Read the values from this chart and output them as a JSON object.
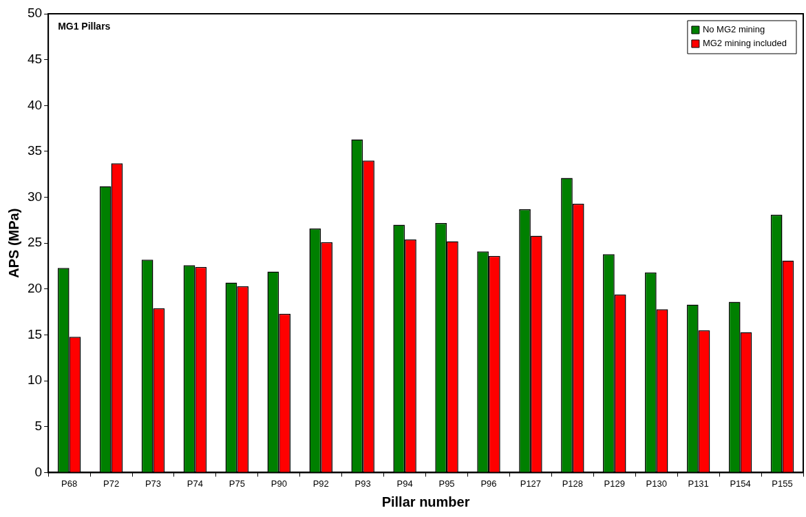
{
  "chart_data": {
    "type": "bar",
    "xlabel": "Pillar number",
    "ylabel": "APS (MPa)",
    "annotations": [
      "MG1 Pillars"
    ],
    "categories": [
      "P68",
      "P72",
      "P73",
      "P74",
      "P75",
      "P90",
      "P92",
      "P93",
      "P94",
      "P95",
      "P96",
      "P127",
      "P128",
      "P129",
      "P130",
      "P131",
      "P154",
      "P155"
    ],
    "series": [
      {
        "name": "No MG2 mining",
        "color": "#008000",
        "values": [
          22.3,
          31.2,
          23.2,
          22.6,
          20.7,
          21.9,
          26.6,
          36.3,
          27.0,
          27.2,
          24.1,
          28.7,
          32.1,
          23.8,
          21.8,
          18.3,
          18.6,
          28.1
        ]
      },
      {
        "name": "MG2 mining included",
        "color": "#ff0000",
        "values": [
          14.8,
          33.7,
          17.9,
          22.4,
          20.3,
          17.3,
          25.1,
          34.0,
          25.4,
          25.2,
          23.6,
          25.8,
          29.3,
          19.4,
          17.8,
          15.5,
          15.3,
          23.1
        ]
      }
    ],
    "ylim": [
      0,
      50
    ],
    "yticks": [
      0,
      5,
      10,
      15,
      20,
      25,
      30,
      35,
      40,
      45,
      50
    ],
    "grid": false,
    "legend": "top right"
  }
}
